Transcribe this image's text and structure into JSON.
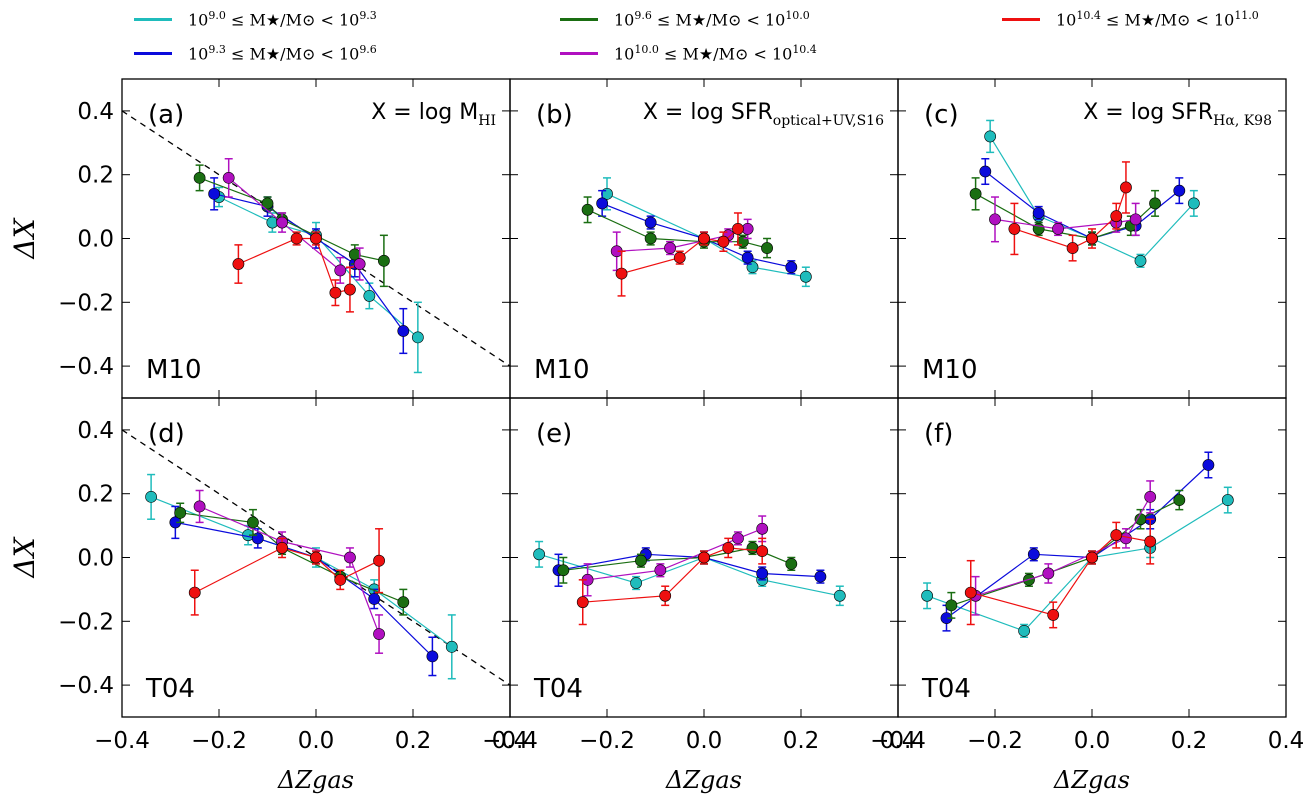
{
  "legend": [
    {
      "name": "10^{9.0} ≤ M★/M⊙ < 10^{9.3}",
      "lo": "9.0",
      "hi": "9.3",
      "color": "#1fbcbc"
    },
    {
      "name": "10^{9.3} ≤ M★/M⊙ < 10^{9.6}",
      "lo": "9.3",
      "hi": "9.6",
      "color": "#0b0bdc"
    },
    {
      "name": "10^{9.6} ≤ M★/M⊙ < 10^{10.0}",
      "lo": "9.6",
      "hi": "10.0",
      "color": "#1a6e12"
    },
    {
      "name": "10^{10.0} ≤ M★/M⊙ < 10^{10.4}",
      "lo": "10.0",
      "hi": "10.4",
      "color": "#b010c0"
    },
    {
      "name": "10^{10.4} ≤ M★/M⊙ < 10^{11.0}",
      "lo": "10.4",
      "hi": "11.0",
      "color": "#ee1010"
    }
  ],
  "legend_text": {
    "mass_label": "M★/M⊙",
    "leq": "≤",
    "lt": "<",
    "base": "10"
  },
  "axes": {
    "xlabel": "ΔZgas",
    "ylabel": "ΔX",
    "xlim": [
      -0.4,
      0.4
    ],
    "ylim": [
      -0.5,
      0.5
    ],
    "xticks": [
      -0.4,
      -0.2,
      0.0,
      0.2,
      0.4
    ],
    "xticklabels": [
      "−0.4",
      "−0.2",
      "0.0",
      "0.2",
      "0.4"
    ],
    "yticks": [
      -0.4,
      -0.2,
      0.0,
      0.2,
      0.4
    ],
    "yticklabels": [
      "−0.4",
      "−0.2",
      "0.0",
      "0.2",
      "0.4"
    ]
  },
  "chart_data": [
    {
      "type": "scatter",
      "panel": "(a)",
      "method": "M10",
      "title": "X = log MHI",
      "title_main": "X = log M",
      "title_sub": "HI",
      "reference_line": {
        "x": [
          -0.4,
          0.4
        ],
        "y": [
          0.4,
          -0.4
        ]
      },
      "series": [
        {
          "name": "10^9.0-10^9.3",
          "x": [
            -0.2,
            -0.09,
            0.0,
            0.11,
            0.21
          ],
          "y": [
            0.13,
            0.05,
            0.01,
            -0.18,
            -0.31
          ],
          "err": [
            0.03,
            0.03,
            0.04,
            0.04,
            0.11
          ]
        },
        {
          "name": "10^9.3-10^9.6",
          "x": [
            -0.21,
            -0.1,
            0.0,
            0.08,
            0.18
          ],
          "y": [
            0.14,
            0.1,
            0.0,
            -0.08,
            -0.29
          ],
          "err": [
            0.05,
            0.03,
            0.03,
            0.04,
            0.07
          ]
        },
        {
          "name": "10^9.6-10^10.0",
          "x": [
            -0.24,
            -0.1,
            -0.07,
            0.08,
            0.14
          ],
          "y": [
            0.19,
            0.11,
            0.06,
            -0.05,
            -0.07
          ],
          "err": [
            0.04,
            0.02,
            0.02,
            0.03,
            0.08
          ]
        },
        {
          "name": "10^10.0-10^10.4",
          "x": [
            -0.18,
            -0.07,
            0.05,
            0.09
          ],
          "y": [
            0.19,
            0.05,
            -0.1,
            -0.08
          ],
          "err": [
            0.06,
            0.03,
            0.04,
            0.05
          ]
        },
        {
          "name": "10^10.4-10^11.0",
          "x": [
            -0.16,
            -0.04,
            0.0,
            0.04,
            0.07
          ],
          "y": [
            -0.08,
            0.0,
            0.0,
            -0.17,
            -0.16
          ],
          "err": [
            0.06,
            0.02,
            0.02,
            0.04,
            0.07
          ]
        }
      ]
    },
    {
      "type": "scatter",
      "panel": "(b)",
      "method": "M10",
      "title": "X = log SFRoptical+UV,S16",
      "title_main": "X = log SFR",
      "title_sub": "optical+UV,S16",
      "series": [
        {
          "name": "10^9.0-10^9.3",
          "x": [
            -0.2,
            0.0,
            0.1,
            0.21
          ],
          "y": [
            0.14,
            0.0,
            -0.09,
            -0.12
          ],
          "err": [
            0.05,
            0.02,
            0.02,
            0.03
          ]
        },
        {
          "name": "10^9.3-10^9.6",
          "x": [
            -0.21,
            -0.11,
            0.0,
            0.09,
            0.18
          ],
          "y": [
            0.11,
            0.05,
            0.0,
            -0.06,
            -0.09
          ],
          "err": [
            0.04,
            0.02,
            0.02,
            0.02,
            0.02
          ]
        },
        {
          "name": "10^9.6-10^10.0",
          "x": [
            -0.24,
            -0.11,
            0.0,
            0.08,
            0.13
          ],
          "y": [
            0.09,
            0.0,
            -0.01,
            -0.01,
            -0.03
          ],
          "err": [
            0.04,
            0.02,
            0.02,
            0.02,
            0.03
          ]
        },
        {
          "name": "10^10.0-10^10.4",
          "x": [
            -0.18,
            -0.07,
            0.05,
            0.09
          ],
          "y": [
            -0.04,
            -0.03,
            0.01,
            0.03
          ],
          "err": [
            0.06,
            0.02,
            0.02,
            0.03
          ]
        },
        {
          "name": "10^10.4-10^11.0",
          "x": [
            -0.17,
            -0.05,
            0.0,
            0.04,
            0.07
          ],
          "y": [
            -0.11,
            -0.06,
            0.0,
            -0.01,
            0.03
          ],
          "err": [
            0.07,
            0.02,
            0.02,
            0.03,
            0.05
          ]
        }
      ]
    },
    {
      "type": "scatter",
      "panel": "(c)",
      "method": "M10",
      "title": "X = log SFRHα,K98",
      "title_main": "X = log SFR",
      "title_sub": "Hα, K98",
      "series": [
        {
          "name": "10^9.0-10^9.3",
          "x": [
            -0.21,
            -0.11,
            0.0,
            0.1,
            0.21
          ],
          "y": [
            0.32,
            0.07,
            0.0,
            -0.07,
            0.11
          ],
          "err": [
            0.05,
            0.02,
            0.02,
            0.02,
            0.04
          ]
        },
        {
          "name": "10^9.3-10^9.6",
          "x": [
            -0.22,
            -0.11,
            0.0,
            0.09,
            0.18
          ],
          "y": [
            0.21,
            0.08,
            0.0,
            0.04,
            0.15
          ],
          "err": [
            0.04,
            0.02,
            0.02,
            0.03,
            0.04
          ]
        },
        {
          "name": "10^9.6-10^10.0",
          "x": [
            -0.24,
            -0.11,
            0.0,
            0.08,
            0.13
          ],
          "y": [
            0.14,
            0.03,
            0.0,
            0.04,
            0.11
          ],
          "err": [
            0.05,
            0.02,
            0.02,
            0.03,
            0.04
          ]
        },
        {
          "name": "10^10.0-10^10.4",
          "x": [
            -0.2,
            -0.07,
            0.05,
            0.09
          ],
          "y": [
            0.06,
            0.03,
            0.05,
            0.06
          ],
          "err": [
            0.07,
            0.02,
            0.03,
            0.05
          ]
        },
        {
          "name": "10^10.4-10^11.0",
          "x": [
            -0.16,
            -0.04,
            0.0,
            0.05,
            0.07
          ],
          "y": [
            0.03,
            -0.03,
            0.0,
            0.07,
            0.16
          ],
          "err": [
            0.08,
            0.04,
            0.03,
            0.04,
            0.08
          ]
        }
      ]
    },
    {
      "type": "scatter",
      "panel": "(d)",
      "method": "T04",
      "title": "",
      "title_main": "",
      "title_sub": "",
      "reference_line": {
        "x": [
          -0.4,
          0.4
        ],
        "y": [
          0.4,
          -0.4
        ]
      },
      "series": [
        {
          "name": "10^9.0-10^9.3",
          "x": [
            -0.34,
            -0.14,
            0.0,
            0.12,
            0.28
          ],
          "y": [
            0.19,
            0.07,
            0.0,
            -0.1,
            -0.28
          ],
          "err": [
            0.07,
            0.03,
            0.03,
            0.03,
            0.1
          ]
        },
        {
          "name": "10^9.3-10^9.6",
          "x": [
            -0.29,
            -0.12,
            0.0,
            0.12,
            0.24
          ],
          "y": [
            0.11,
            0.06,
            0.0,
            -0.13,
            -0.31
          ],
          "err": [
            0.05,
            0.03,
            0.02,
            0.03,
            0.06
          ]
        },
        {
          "name": "10^9.6-10^10.0",
          "x": [
            -0.28,
            -0.13,
            -0.07,
            0.05,
            0.18
          ],
          "y": [
            0.14,
            0.11,
            0.03,
            -0.06,
            -0.14
          ],
          "err": [
            0.03,
            0.04,
            0.02,
            0.02,
            0.04
          ]
        },
        {
          "name": "10^10.0-10^10.4",
          "x": [
            -0.24,
            -0.07,
            0.07,
            0.13
          ],
          "y": [
            0.16,
            0.05,
            0.0,
            -0.24
          ],
          "err": [
            0.05,
            0.03,
            0.03,
            0.06
          ]
        },
        {
          "name": "10^10.4-10^11.0",
          "x": [
            -0.25,
            -0.07,
            0.0,
            0.05,
            0.13
          ],
          "y": [
            -0.11,
            0.03,
            0.0,
            -0.07,
            -0.01
          ],
          "err": [
            0.07,
            0.03,
            0.02,
            0.03,
            0.1
          ]
        }
      ]
    },
    {
      "type": "scatter",
      "panel": "(e)",
      "method": "T04",
      "title": "",
      "title_main": "",
      "title_sub": "",
      "series": [
        {
          "name": "10^9.0-10^9.3",
          "x": [
            -0.34,
            -0.14,
            0.0,
            0.12,
            0.28
          ],
          "y": [
            0.01,
            -0.08,
            0.0,
            -0.07,
            -0.12
          ],
          "err": [
            0.04,
            0.02,
            0.02,
            0.02,
            0.03
          ]
        },
        {
          "name": "10^9.3-10^9.6",
          "x": [
            -0.3,
            -0.12,
            0.0,
            0.12,
            0.24
          ],
          "y": [
            -0.04,
            0.01,
            0.0,
            -0.05,
            -0.06
          ],
          "err": [
            0.05,
            0.02,
            0.02,
            0.02,
            0.02
          ]
        },
        {
          "name": "10^9.6-10^10.0",
          "x": [
            -0.29,
            -0.13,
            0.0,
            0.1,
            0.18
          ],
          "y": [
            -0.04,
            -0.01,
            0.0,
            0.03,
            -0.02
          ],
          "err": [
            0.04,
            0.02,
            0.02,
            0.02,
            0.02
          ]
        },
        {
          "name": "10^10.0-10^10.4",
          "x": [
            -0.24,
            -0.09,
            0.07,
            0.12
          ],
          "y": [
            -0.07,
            -0.04,
            0.06,
            0.09
          ],
          "err": [
            0.05,
            0.02,
            0.02,
            0.04
          ]
        },
        {
          "name": "10^10.4-10^11.0",
          "x": [
            -0.25,
            -0.08,
            0.0,
            0.05,
            0.12
          ],
          "y": [
            -0.14,
            -0.12,
            0.0,
            0.03,
            0.02
          ],
          "err": [
            0.07,
            0.03,
            0.02,
            0.03,
            0.04
          ]
        }
      ]
    },
    {
      "type": "scatter",
      "panel": "(f)",
      "method": "T04",
      "title": "",
      "title_main": "",
      "title_sub": "",
      "series": [
        {
          "name": "10^9.0-10^9.3",
          "x": [
            -0.34,
            -0.14,
            0.0,
            0.12,
            0.28
          ],
          "y": [
            -0.12,
            -0.23,
            0.0,
            0.03,
            0.18
          ],
          "err": [
            0.04,
            0.02,
            0.02,
            0.03,
            0.04
          ]
        },
        {
          "name": "10^9.3-10^9.6",
          "x": [
            -0.3,
            -0.12,
            0.0,
            0.12,
            0.24
          ],
          "y": [
            -0.19,
            0.01,
            0.0,
            0.12,
            0.29
          ],
          "err": [
            0.04,
            0.02,
            0.02,
            0.03,
            0.04
          ]
        },
        {
          "name": "10^9.6-10^10.0",
          "x": [
            -0.29,
            -0.13,
            0.0,
            0.1,
            0.18
          ],
          "y": [
            -0.15,
            -0.07,
            0.0,
            0.12,
            0.18
          ],
          "err": [
            0.04,
            0.02,
            0.02,
            0.03,
            0.03
          ]
        },
        {
          "name": "10^10.0-10^10.4",
          "x": [
            -0.24,
            -0.09,
            0.07,
            0.12
          ],
          "y": [
            -0.12,
            -0.05,
            0.06,
            0.19
          ],
          "err": [
            0.06,
            0.03,
            0.03,
            0.05
          ]
        },
        {
          "name": "10^10.4-10^11.0",
          "x": [
            -0.25,
            -0.08,
            0.0,
            0.05,
            0.12
          ],
          "y": [
            -0.11,
            -0.18,
            0.0,
            0.07,
            0.05
          ],
          "err": [
            0.1,
            0.04,
            0.02,
            0.04,
            0.07
          ]
        }
      ]
    }
  ]
}
